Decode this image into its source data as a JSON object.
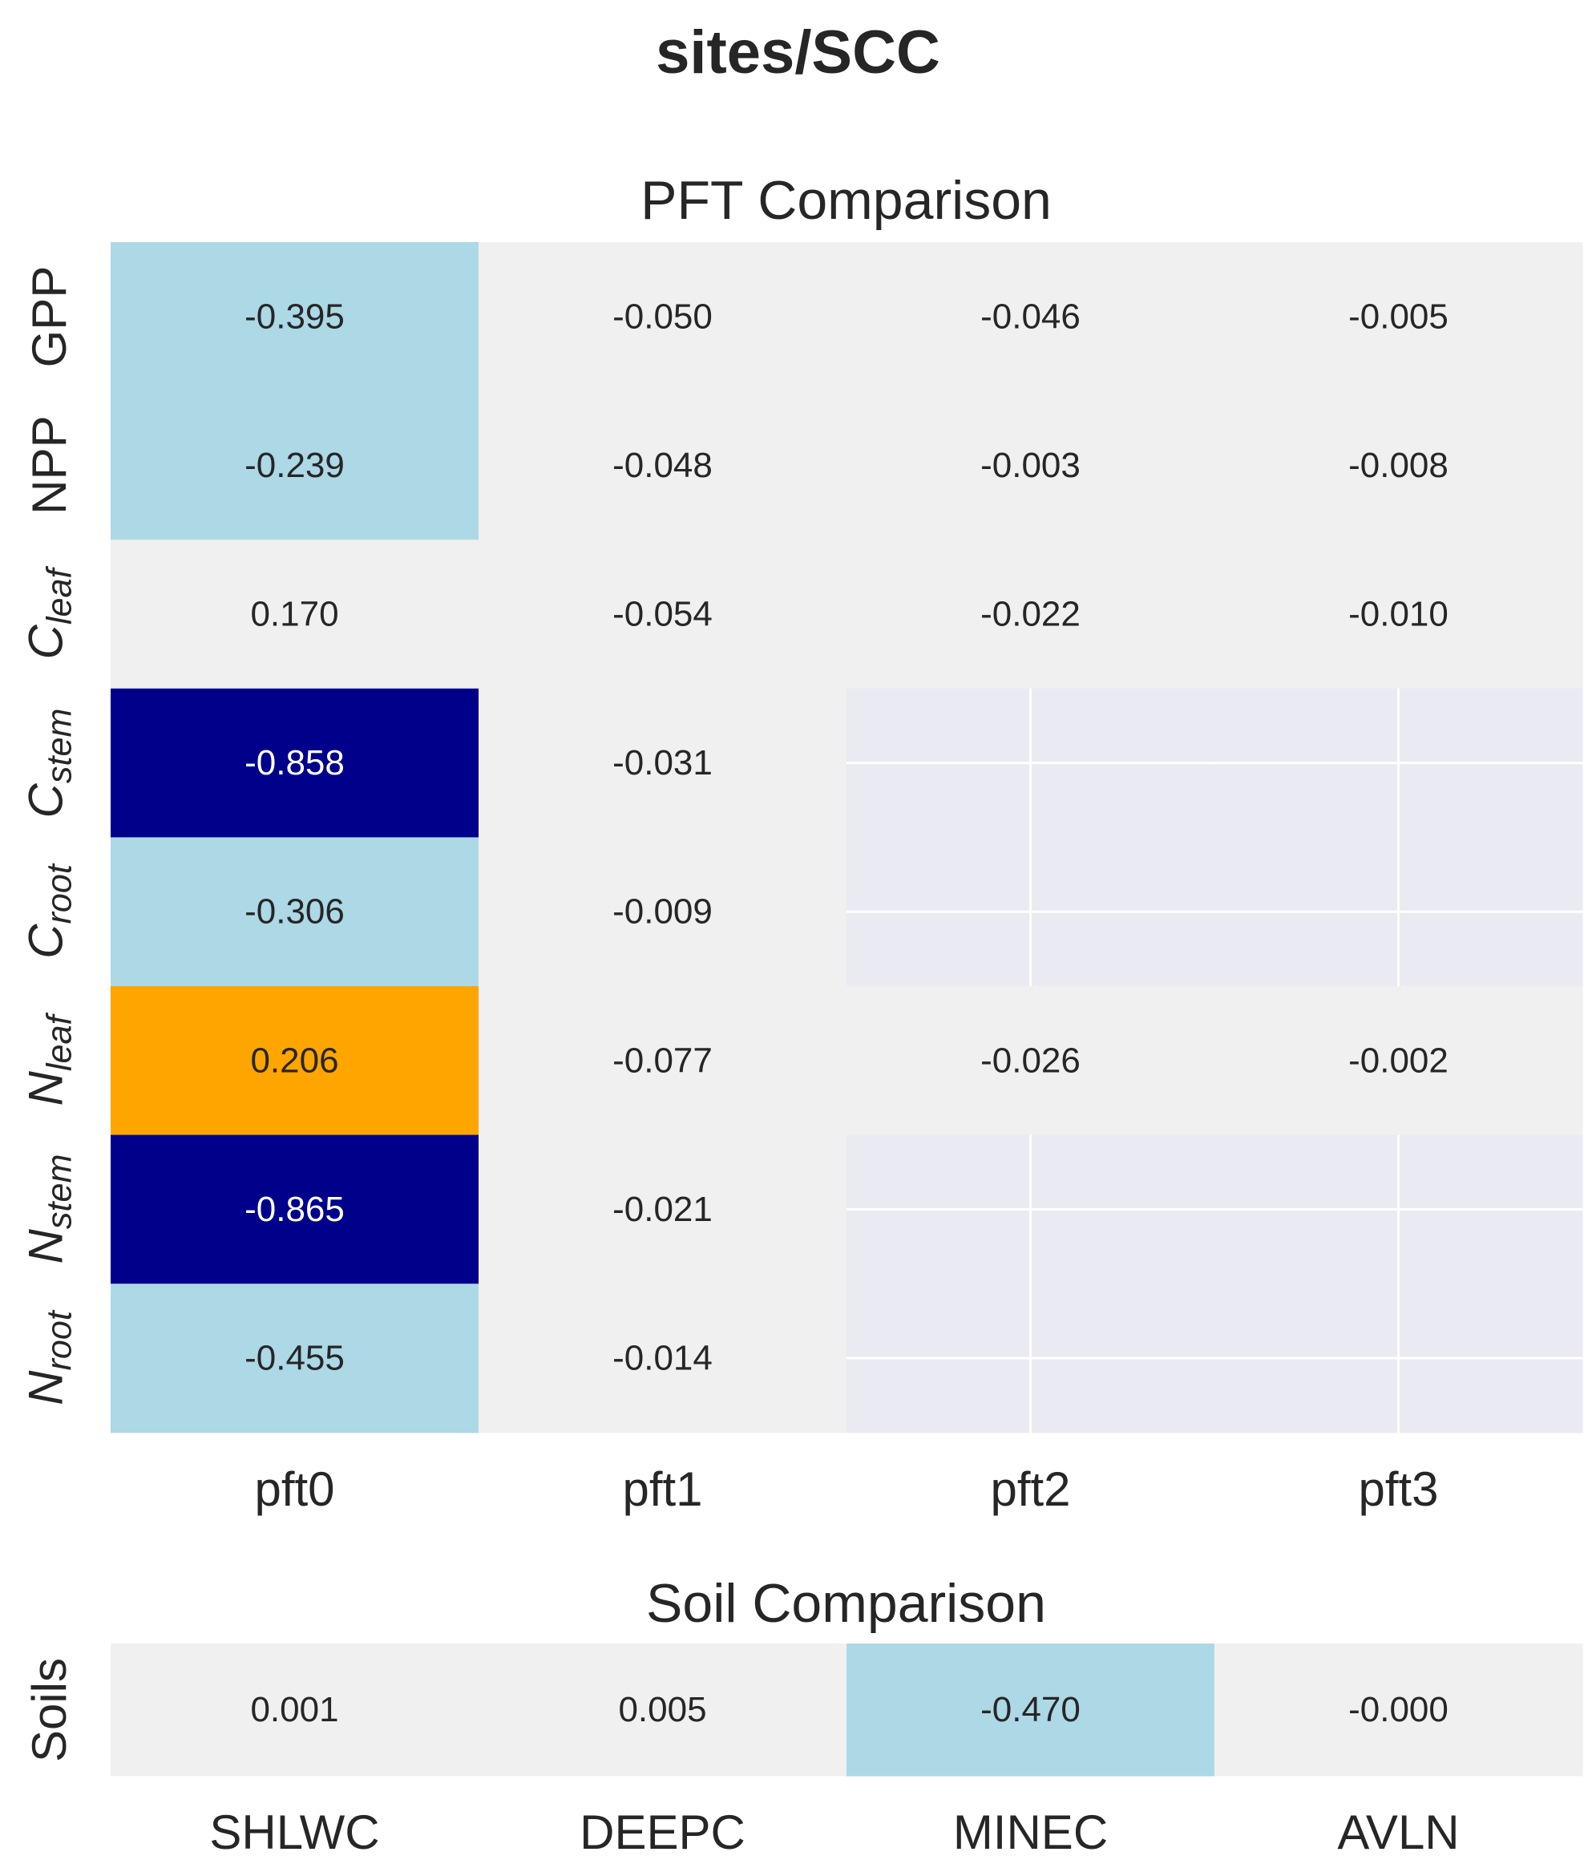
{
  "suptitle": "sites/SCC",
  "colors": {
    "light": "#add8e6",
    "dark": "#00008b",
    "orange": "#ffa500",
    "neutral": "#f0f0f0",
    "missing": "#eaeaf2",
    "grid": "#ffffff",
    "text_dark": "#262626",
    "text_light": "#ffffff"
  },
  "chart_data": [
    {
      "type": "heatmap",
      "title": "PFT Comparison",
      "columns": [
        "pft0",
        "pft1",
        "pft2",
        "pft3"
      ],
      "rows": [
        {
          "label": "GPP",
          "var": null,
          "sub": null
        },
        {
          "label": "NPP",
          "var": null,
          "sub": null
        },
        {
          "label": "Cleaf",
          "var": "C",
          "sub": "leaf"
        },
        {
          "label": "Cstem",
          "var": "C",
          "sub": "stem"
        },
        {
          "label": "Croot",
          "var": "C",
          "sub": "root"
        },
        {
          "label": "Nleaf",
          "var": "N",
          "sub": "leaf"
        },
        {
          "label": "Nstem",
          "var": "N",
          "sub": "stem"
        },
        {
          "label": "Nroot",
          "var": "N",
          "sub": "root"
        }
      ],
      "values": [
        [
          -0.395,
          -0.05,
          -0.046,
          -0.005
        ],
        [
          -0.239,
          -0.048,
          -0.003,
          -0.008
        ],
        [
          0.17,
          -0.054,
          -0.022,
          -0.01
        ],
        [
          -0.858,
          -0.031,
          null,
          null
        ],
        [
          -0.306,
          -0.009,
          null,
          null
        ],
        [
          0.206,
          -0.077,
          -0.026,
          -0.002
        ],
        [
          -0.865,
          -0.021,
          null,
          null
        ],
        [
          -0.455,
          -0.014,
          null,
          null
        ]
      ],
      "cell_colors": [
        [
          "light",
          "neutral",
          "neutral",
          "neutral"
        ],
        [
          "light",
          "neutral",
          "neutral",
          "neutral"
        ],
        [
          "neutral",
          "neutral",
          "neutral",
          "neutral"
        ],
        [
          "dark",
          "neutral",
          "missing",
          "missing"
        ],
        [
          "light",
          "neutral",
          "missing",
          "missing"
        ],
        [
          "orange",
          "neutral",
          "neutral",
          "neutral"
        ],
        [
          "dark",
          "neutral",
          "missing",
          "missing"
        ],
        [
          "light",
          "neutral",
          "missing",
          "missing"
        ]
      ],
      "display": [
        [
          "-0.395",
          "-0.050",
          "-0.046",
          "-0.005"
        ],
        [
          "-0.239",
          "-0.048",
          "-0.003",
          "-0.008"
        ],
        [
          "0.170",
          "-0.054",
          "-0.022",
          "-0.010"
        ],
        [
          "-0.858",
          "-0.031",
          "",
          ""
        ],
        [
          "-0.306",
          "-0.009",
          "",
          ""
        ],
        [
          "0.206",
          "-0.077",
          "-0.026",
          "-0.002"
        ],
        [
          "-0.865",
          "-0.021",
          "",
          ""
        ],
        [
          "-0.455",
          "-0.014",
          "",
          ""
        ]
      ]
    },
    {
      "type": "heatmap",
      "title": "Soil Comparison",
      "columns": [
        "SHLWC",
        "DEEPC",
        "MINEC",
        "AVLN"
      ],
      "rows": [
        {
          "label": "Soils",
          "var": null,
          "sub": null
        }
      ],
      "values": [
        [
          0.001,
          0.005,
          -0.47,
          -0.0
        ]
      ],
      "cell_colors": [
        [
          "neutral",
          "neutral",
          "light",
          "neutral"
        ]
      ],
      "display": [
        [
          "0.001",
          "0.005",
          "-0.470",
          "-0.000"
        ]
      ]
    }
  ]
}
